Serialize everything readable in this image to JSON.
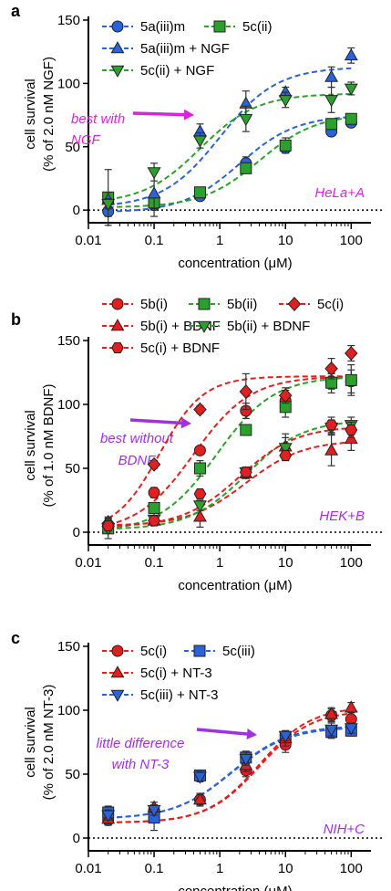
{
  "chart_data": [
    {
      "type": "scatter",
      "panel_label": "a",
      "xlabel": "concentration (μM)",
      "ylabel_line1": "cell survival",
      "ylabel_line2": "(% of 2.0 nM NGF)",
      "x_scale": "log",
      "xlim": [
        0.01,
        200
      ],
      "ylim": [
        -10,
        150
      ],
      "x_ticks": [
        0.01,
        0.1,
        1,
        10,
        100
      ],
      "x_tick_labels": [
        "0.01",
        "0.1",
        "1",
        "10",
        "100"
      ],
      "y_ticks": [
        0,
        50,
        100,
        150
      ],
      "y_tick_labels": [
        "0",
        "50",
        "100",
        "150"
      ],
      "x": [
        0.02,
        0.1,
        0.5,
        2.5,
        10,
        50,
        100
      ],
      "series": [
        {
          "name": "5a(iii)m",
          "color": "#2a62d8",
          "marker": "circle",
          "values": [
            -1,
            4,
            11,
            37,
            49,
            62,
            69
          ],
          "errors": [
            4,
            4,
            3,
            5,
            4,
            3,
            3
          ],
          "fit": [
            -2,
            75,
            2.0,
            1.0
          ]
        },
        {
          "name": "5c(ii)",
          "color": "#2ca02c",
          "marker": "square",
          "values": [
            10,
            6,
            14,
            33,
            51,
            68,
            72
          ],
          "errors": [
            22,
            5,
            4,
            4,
            6,
            4,
            3
          ],
          "fit": [
            2,
            76,
            4.0,
            1.0
          ]
        },
        {
          "name": "5a(iii)m + NGF",
          "color": "#2a62d8",
          "marker": "triangle",
          "values": [
            8,
            13,
            62,
            84,
            93,
            105,
            122
          ],
          "errors": [
            6,
            18,
            6,
            10,
            4,
            8,
            6
          ],
          "fit": [
            2,
            113,
            1.0,
            1.0
          ]
        },
        {
          "name": "5c(ii) + NGF",
          "color": "#2ca02c",
          "marker": "triangle-down",
          "values": [
            5,
            30,
            55,
            72,
            87,
            87,
            96
          ],
          "errors": [
            4,
            7,
            6,
            10,
            6,
            10,
            5
          ],
          "fit": [
            5,
            92,
            0.5,
            1.0
          ]
        }
      ],
      "legend": [
        "5a(iii)m",
        "5c(ii)",
        "5a(iii)m + NGF",
        "5c(ii) + NGF"
      ],
      "annotations": [
        {
          "text": "best with",
          "color": "#e020e0"
        },
        {
          "text": "NGF",
          "color": "#e020e0"
        },
        {
          "text": "HeLa+A",
          "color": "#e020e0"
        }
      ]
    },
    {
      "type": "scatter",
      "panel_label": "b",
      "xlabel": "concentration (μM)",
      "ylabel_line1": "cell survival",
      "ylabel_line2": "(% of 1.0 nM BDNF)",
      "x_scale": "log",
      "xlim": [
        0.01,
        200
      ],
      "ylim": [
        -10,
        150
      ],
      "x_ticks": [
        0.01,
        0.1,
        1,
        10,
        100
      ],
      "x_tick_labels": [
        "0.01",
        "0.1",
        "1",
        "10",
        "100"
      ],
      "y_ticks": [
        0,
        50,
        100,
        150
      ],
      "y_tick_labels": [
        "0",
        "50",
        "100",
        "150"
      ],
      "x": [
        0.02,
        0.1,
        0.5,
        2.5,
        10,
        50,
        100
      ],
      "series": [
        {
          "name": "5b(i)",
          "color": "#e02020",
          "marker": "circle",
          "values": [
            5,
            31,
            64,
            95,
            103,
            118,
            118
          ],
          "errors": [
            6,
            4,
            3,
            6,
            8,
            6,
            9
          ],
          "fit": [
            0,
            122,
            0.4,
            1.0
          ]
        },
        {
          "name": "5b(ii)",
          "color": "#2ca02c",
          "marker": "square",
          "values": [
            3,
            19,
            50,
            80,
            98,
            117,
            119
          ],
          "errors": [
            4,
            3,
            6,
            4,
            8,
            8,
            12
          ],
          "fit": [
            0,
            122,
            0.9,
            1.0
          ]
        },
        {
          "name": "5c(i)",
          "color": "#e02020",
          "marker": "diamond",
          "values": [
            7,
            53,
            96,
            110,
            107,
            128,
            140
          ],
          "errors": [
            3,
            3,
            3,
            14,
            6,
            8,
            6
          ],
          "fit": [
            0,
            122,
            0.12,
            1.3
          ]
        },
        {
          "name": "5b(i) + BDNF",
          "color": "#e02020",
          "marker": "triangle",
          "values": [
            8,
            9,
            12,
            46,
            67,
            64,
            73
          ],
          "errors": [
            4,
            4,
            8,
            4,
            10,
            12,
            9
          ],
          "fit": [
            5,
            72,
            2.5,
            1.0
          ]
        },
        {
          "name": "5b(ii) + BDNF",
          "color": "#2ca02c",
          "marker": "triangle-down",
          "values": [
            3,
            10,
            21,
            47,
            66,
            82,
            84
          ],
          "errors": [
            8,
            3,
            4,
            4,
            8,
            5,
            6
          ],
          "fit": [
            2,
            88,
            2.5,
            1.0
          ]
        },
        {
          "name": "5c(i) + BDNF",
          "color": "#e02020",
          "marker": "hexagon",
          "values": [
            5,
            9,
            30,
            47,
            60,
            84,
            80
          ],
          "errors": [
            4,
            3,
            3,
            4,
            4,
            6,
            6
          ],
          "fit": [
            4,
            83,
            2.0,
            1.0
          ]
        }
      ],
      "legend": [
        "5b(i)",
        "5b(ii)",
        "5c(i)",
        "5b(i) + BDNF",
        "5b(ii) + BDNF",
        "5c(i) + BDNF"
      ],
      "annotations": [
        {
          "text": "best without",
          "color": "#a030e0"
        },
        {
          "text": "BDNF",
          "color": "#a030e0"
        },
        {
          "text": "HEK+B",
          "color": "#a030e0"
        }
      ]
    },
    {
      "type": "scatter",
      "panel_label": "c",
      "xlabel": "concentration (μM)",
      "ylabel_line1": "cell survival",
      "ylabel_line2": "(% of 2.0 nM NT-3)",
      "x_scale": "log",
      "xlim": [
        0.01,
        200
      ],
      "ylim": [
        -10,
        150
      ],
      "x_ticks": [
        0.01,
        0.1,
        1,
        10,
        100
      ],
      "x_tick_labels": [
        "0.01",
        "0.1",
        "1",
        "10",
        "100"
      ],
      "y_ticks": [
        0,
        50,
        100,
        150
      ],
      "y_tick_labels": [
        "0",
        "50",
        "100",
        "150"
      ],
      "x": [
        0.02,
        0.1,
        0.5,
        2.5,
        10,
        50,
        100
      ],
      "series": [
        {
          "name": "5c(i)",
          "color": "#e02020",
          "marker": "circle",
          "values": [
            14,
            22,
            30,
            53,
            73,
            96,
            93
          ],
          "errors": [
            4,
            4,
            4,
            5,
            6,
            5,
            6
          ],
          "fit": [
            12,
            100,
            4.0,
            1.1
          ]
        },
        {
          "name": "5c(iii)",
          "color": "#2a62d8",
          "marker": "square",
          "values": [
            20,
            16,
            49,
            63,
            79,
            83,
            84
          ],
          "errors": [
            5,
            10,
            4,
            5,
            4,
            5,
            4
          ],
          "fit": [
            15,
            87,
            1.5,
            1.0
          ]
        },
        {
          "name": "5c(i) + NT-3",
          "color": "#e02020",
          "marker": "triangle",
          "values": [
            15,
            24,
            30,
            57,
            78,
            97,
            102
          ],
          "errors": [
            4,
            4,
            5,
            5,
            6,
            5,
            4
          ],
          "fit": [
            12,
            103,
            4.0,
            1.1
          ]
        },
        {
          "name": "5c(iii) + NT-3",
          "color": "#2a62d8",
          "marker": "triangle-down",
          "values": [
            18,
            22,
            48,
            62,
            80,
            85,
            86
          ],
          "errors": [
            4,
            4,
            4,
            5,
            4,
            5,
            4
          ],
          "fit": [
            15,
            88,
            1.5,
            1.0
          ]
        }
      ],
      "legend": [
        "5c(i)",
        "5c(iii)",
        "5c(i) + NT-3",
        "5c(iii) + NT-3"
      ],
      "annotations": [
        {
          "text": "little difference",
          "color": "#a030e0"
        },
        {
          "text": "with NT-3",
          "color": "#a030e0"
        },
        {
          "text": "NIH+C",
          "color": "#a030e0"
        }
      ]
    }
  ]
}
